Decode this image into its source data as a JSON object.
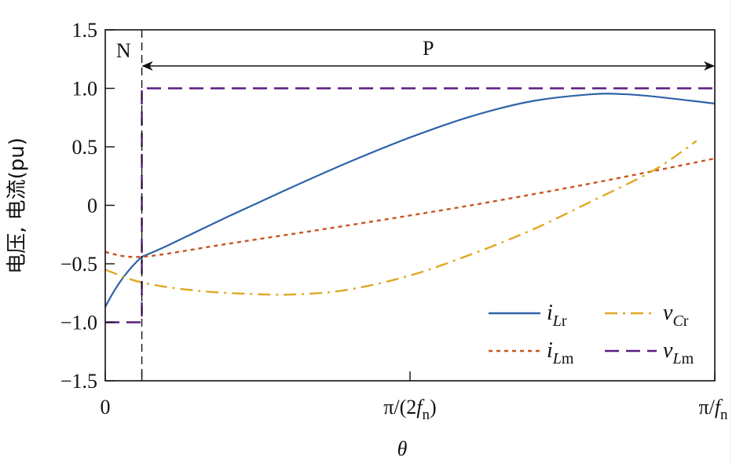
{
  "chart_data": {
    "type": "line",
    "title": "",
    "xlabel": "θ",
    "ylabel": "电压, 电流(pu)",
    "xlim": [
      0,
      1
    ],
    "ylim": [
      -1.5,
      1.5
    ],
    "x_unit_note": "x normalized: 0 = 0, 0.5 = π/(2f_n), 1 = π/f_n",
    "x_ticks": [
      {
        "pos": 0,
        "label": "0"
      },
      {
        "pos": 0.06,
        "label": ""
      },
      {
        "pos": 0.5,
        "label": "π/(2f_n)"
      },
      {
        "pos": 1,
        "label": "π/f_n"
      }
    ],
    "y_ticks": [
      1.5,
      1.0,
      0.5,
      0,
      -0.5,
      -1.0,
      -1.5
    ],
    "y_tick_labels": [
      "1.5",
      "1.0",
      "0.5",
      "0",
      "−0.5",
      "−1.0",
      "−1.5"
    ],
    "grid": false,
    "legend_position": "lower right",
    "annotations": [
      {
        "text": "N",
        "region": [
          0,
          0.06
        ]
      },
      {
        "text": "P",
        "region": [
          0.06,
          1
        ],
        "style": "double-arrow"
      }
    ],
    "boundary_x": 0.06,
    "series": [
      {
        "name": "i_Lr",
        "label_main": "i",
        "label_sub": "Lr",
        "color": "#2e63a8",
        "style": "solid",
        "x": [
          0,
          0.06,
          0.1,
          0.2,
          0.3,
          0.4,
          0.5,
          0.6,
          0.7,
          0.8,
          0.85,
          0.9,
          1.0
        ],
        "y": [
          -0.87,
          -0.44,
          -0.35,
          -0.1,
          0.14,
          0.37,
          0.58,
          0.76,
          0.89,
          0.95,
          0.95,
          0.93,
          0.87
        ]
      },
      {
        "name": "i_Lm",
        "label_main": "i",
        "label_sub": "Lm",
        "color": "#c9531e",
        "style": "dotted",
        "x": [
          0,
          0.06,
          0.2,
          0.4,
          0.6,
          0.8,
          1.0
        ],
        "y": [
          -0.4,
          -0.44,
          -0.33,
          -0.17,
          0.0,
          0.19,
          0.4
        ]
      },
      {
        "name": "v_Cr",
        "label_main": "v",
        "label_sub": "Cr",
        "color": "#e0a825",
        "style": "dashdot",
        "x": [
          0,
          0.06,
          0.15,
          0.25,
          0.32,
          0.4,
          0.5,
          0.6,
          0.7,
          0.8,
          0.9,
          0.97
        ],
        "y": [
          -0.55,
          -0.66,
          -0.73,
          -0.76,
          -0.76,
          -0.72,
          -0.6,
          -0.42,
          -0.21,
          0.04,
          0.3,
          0.55
        ]
      },
      {
        "name": "v_Lm",
        "label_main": "v",
        "label_sub": "Lm",
        "color": "#5b1a80",
        "style": "dashed",
        "x": [
          0,
          0.06,
          0.06,
          1.0
        ],
        "y": [
          -1.0,
          -1.0,
          1.0,
          1.0
        ]
      }
    ]
  }
}
